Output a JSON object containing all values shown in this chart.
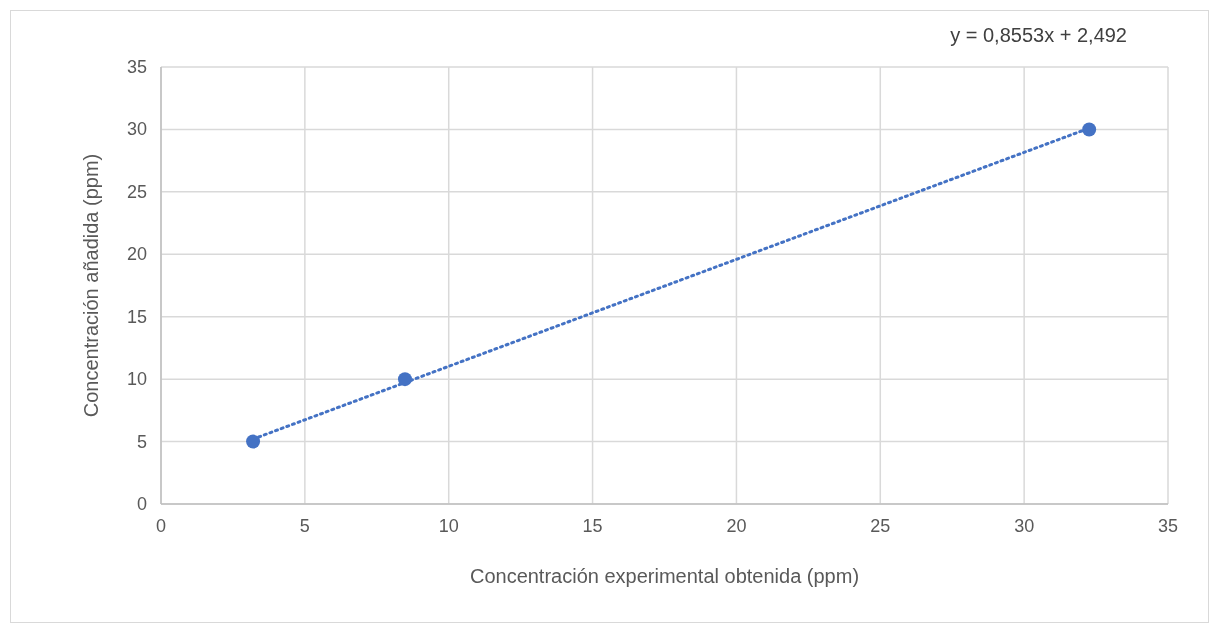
{
  "chart_data": {
    "type": "scatter",
    "xlabel": "Concentración experimental obtenida (ppm)",
    "ylabel": "Concentración añadida (ppm)",
    "annotations": [
      "y = 0,8553x + 2,492"
    ],
    "series": [
      {
        "color": "#4472c4",
        "x": [
          3.2,
          8.48,
          32.26
        ],
        "values": [
          5,
          10,
          30
        ],
        "marker": "circle"
      },
      {
        "type": "line",
        "color": "#4472c4",
        "x": [
          3.2,
          32.26
        ],
        "values": [
          5.2,
          30.1
        ],
        "marker": "none",
        "line_style": "dotted"
      }
    ],
    "xlim": [
      0,
      35
    ],
    "xticks": [
      0,
      5,
      10,
      15,
      20,
      25,
      30,
      35
    ],
    "ylim": [
      0,
      35
    ],
    "yticks": [
      0,
      5,
      10,
      15,
      20,
      25,
      30,
      35
    ],
    "grid": true
  }
}
